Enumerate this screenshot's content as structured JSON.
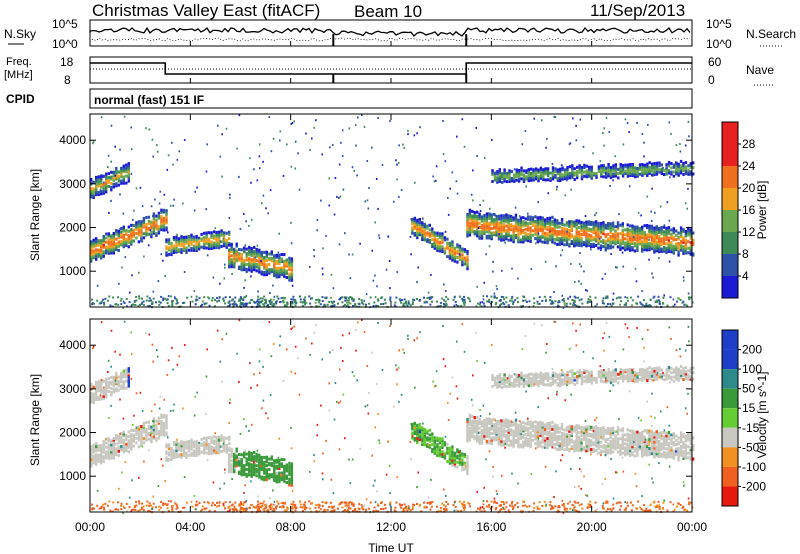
{
  "header": {
    "station": "Christmas Valley East (fitACF)",
    "beam": "Beam 10",
    "date": "11/Sep/2013"
  },
  "top_panels": {
    "nsky_label": "N.Sky",
    "nsky_ticks": [
      "10^5",
      "10^0"
    ],
    "nsearch_label": "N.Search",
    "nsearch_ticks": [
      "10^5",
      "10^0"
    ],
    "freq_label": "Freq.",
    "freq_unit": "[MHz]",
    "freq_ticks": [
      "18",
      "8"
    ],
    "nave_label": "Nave",
    "nave_ticks": [
      "60",
      "0"
    ],
    "cpid_label": "CPID",
    "cpid_value": "normal (fast) 151 IF"
  },
  "x_axis": {
    "label": "Time UT",
    "ticks": [
      "00:00",
      "04:00",
      "08:00",
      "12:00",
      "16:00",
      "20:00",
      "00:00"
    ]
  },
  "y_axis": {
    "label": "Slant Range [km]",
    "ticks": [
      "1000",
      "2000",
      "3000",
      "4000"
    ]
  },
  "power_bar": {
    "label": "Power [dB]",
    "ticks": [
      "4",
      "8",
      "12",
      "16",
      "20",
      "24",
      "28"
    ],
    "colors": [
      "#1b1bd6",
      "#2d52a8",
      "#3d8a58",
      "#6aa84f",
      "#f0a020",
      "#f07020",
      "#e82020"
    ]
  },
  "velocity_bar": {
    "label": "Velocity [m s^-1]",
    "ticks": [
      "200",
      "100",
      "50",
      "15",
      "-15",
      "-50",
      "-100",
      "-200"
    ],
    "colors": [
      "#1f3fc8",
      "#2e8a8a",
      "#3a9a3a",
      "#66cc33",
      "#c8c8c0",
      "#f09020",
      "#f06020",
      "#e81a10"
    ]
  },
  "chart_data": [
    {
      "type": "heatmap",
      "title": "Power",
      "xlabel": "Time UT",
      "ylabel": "Slant Range [km]",
      "xlim": [
        "00:00",
        "24:00"
      ],
      "ylim": [
        180,
        4600
      ],
      "colorbar_label": "Power [dB]",
      "colorbar_range": [
        0,
        32
      ],
      "bands": [
        {
          "t_start": 0.0,
          "t_end": 3.0,
          "range_center_start": 1500,
          "range_center_end": 2200,
          "width_km": 450,
          "peak_db": 28
        },
        {
          "t_start": 0.0,
          "t_end": 1.5,
          "range_center_start": 2900,
          "range_center_end": 3300,
          "width_km": 400,
          "peak_db": 22
        },
        {
          "t_start": 3.0,
          "t_end": 5.5,
          "range_center_start": 1600,
          "range_center_end": 1800,
          "width_km": 350,
          "peak_db": 24
        },
        {
          "t_start": 5.5,
          "t_end": 8.0,
          "range_center_start": 1400,
          "range_center_end": 1100,
          "width_km": 500,
          "peak_db": 26
        },
        {
          "t_start": 12.8,
          "t_end": 15.0,
          "range_center_start": 2100,
          "range_center_end": 1300,
          "width_km": 400,
          "peak_db": 26
        },
        {
          "t_start": 15.0,
          "t_end": 24.0,
          "range_center_start": 2100,
          "range_center_end": 1700,
          "width_km": 550,
          "peak_db": 28
        },
        {
          "t_start": 16.0,
          "t_end": 24.0,
          "range_center_start": 3200,
          "range_center_end": 3400,
          "width_km": 250,
          "peak_db": 18
        }
      ]
    },
    {
      "type": "heatmap",
      "title": "Velocity",
      "xlabel": "Time UT",
      "ylabel": "Slant Range [km]",
      "xlim": [
        "00:00",
        "24:00"
      ],
      "ylim": [
        180,
        4600
      ],
      "colorbar_label": "Velocity [m s^-1]",
      "colorbar_range": [
        -200,
        200
      ],
      "regions": [
        {
          "t_start": 0.0,
          "t_end": 5.5,
          "range_center": 1900,
          "velocity": 0
        },
        {
          "t_start": 5.7,
          "t_end": 8.0,
          "range_center": 1250,
          "velocity": 40
        },
        {
          "t_start": 12.8,
          "t_end": 15.0,
          "range_center": 1800,
          "velocity": 30
        },
        {
          "t_start": 15.0,
          "t_end": 24.0,
          "range_center": 1850,
          "velocity": 0
        },
        {
          "t_start": 1.5,
          "t_end": 2.0,
          "range_center": 3200,
          "velocity": 180
        },
        {
          "t_start": 0.0,
          "t_end": 24.0,
          "range_center": 350,
          "velocity": -60
        }
      ]
    }
  ]
}
